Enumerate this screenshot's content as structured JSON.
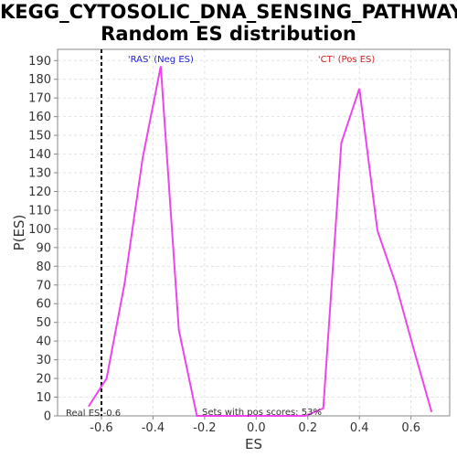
{
  "chart_data": {
    "type": "line",
    "title_line1": "KEGG_CYTOSOLIC_DNA_SENSING_PATHWAY:",
    "title_line2": "Random ES distribution",
    "xlabel": "ES",
    "ylabel": "P(ES)",
    "xlim": [
      -0.77,
      0.75
    ],
    "ylim": [
      0,
      196
    ],
    "xticks": [
      -0.6,
      -0.4,
      -0.2,
      0.0,
      0.2,
      0.4,
      0.6
    ],
    "xtick_labels": [
      "-0.6",
      "-0.4",
      "-0.2",
      "0.0",
      "0.2",
      "0.4",
      "0.6"
    ],
    "yticks": [
      0,
      10,
      20,
      30,
      40,
      50,
      60,
      70,
      80,
      90,
      100,
      110,
      120,
      130,
      140,
      150,
      160,
      170,
      180,
      190
    ],
    "grid": true,
    "series": [
      {
        "color": "#ee44ee",
        "x": [
          -0.65,
          -0.58,
          -0.51,
          -0.44,
          -0.37,
          -0.3,
          -0.23,
          -0.16,
          -0.09,
          -0.02,
          0.05,
          0.12,
          0.19,
          0.26,
          0.33,
          0.4,
          0.47,
          0.54,
          0.61,
          0.68
        ],
        "y": [
          5,
          20,
          71,
          138,
          187,
          46,
          0,
          0,
          0,
          0,
          0,
          0,
          0,
          4,
          146,
          175,
          99,
          71,
          36,
          2
        ]
      }
    ],
    "real_es": -0.6,
    "annotations": {
      "neg_label": "'RAS' (Neg ES)",
      "pos_label": "'CT' (Pos ES)",
      "real_es_label": "Real ES -0.6",
      "pos_scores_label": "Sets with pos scores: 53%",
      "neg_color": "#2222cc",
      "pos_color": "#cc2222"
    }
  }
}
